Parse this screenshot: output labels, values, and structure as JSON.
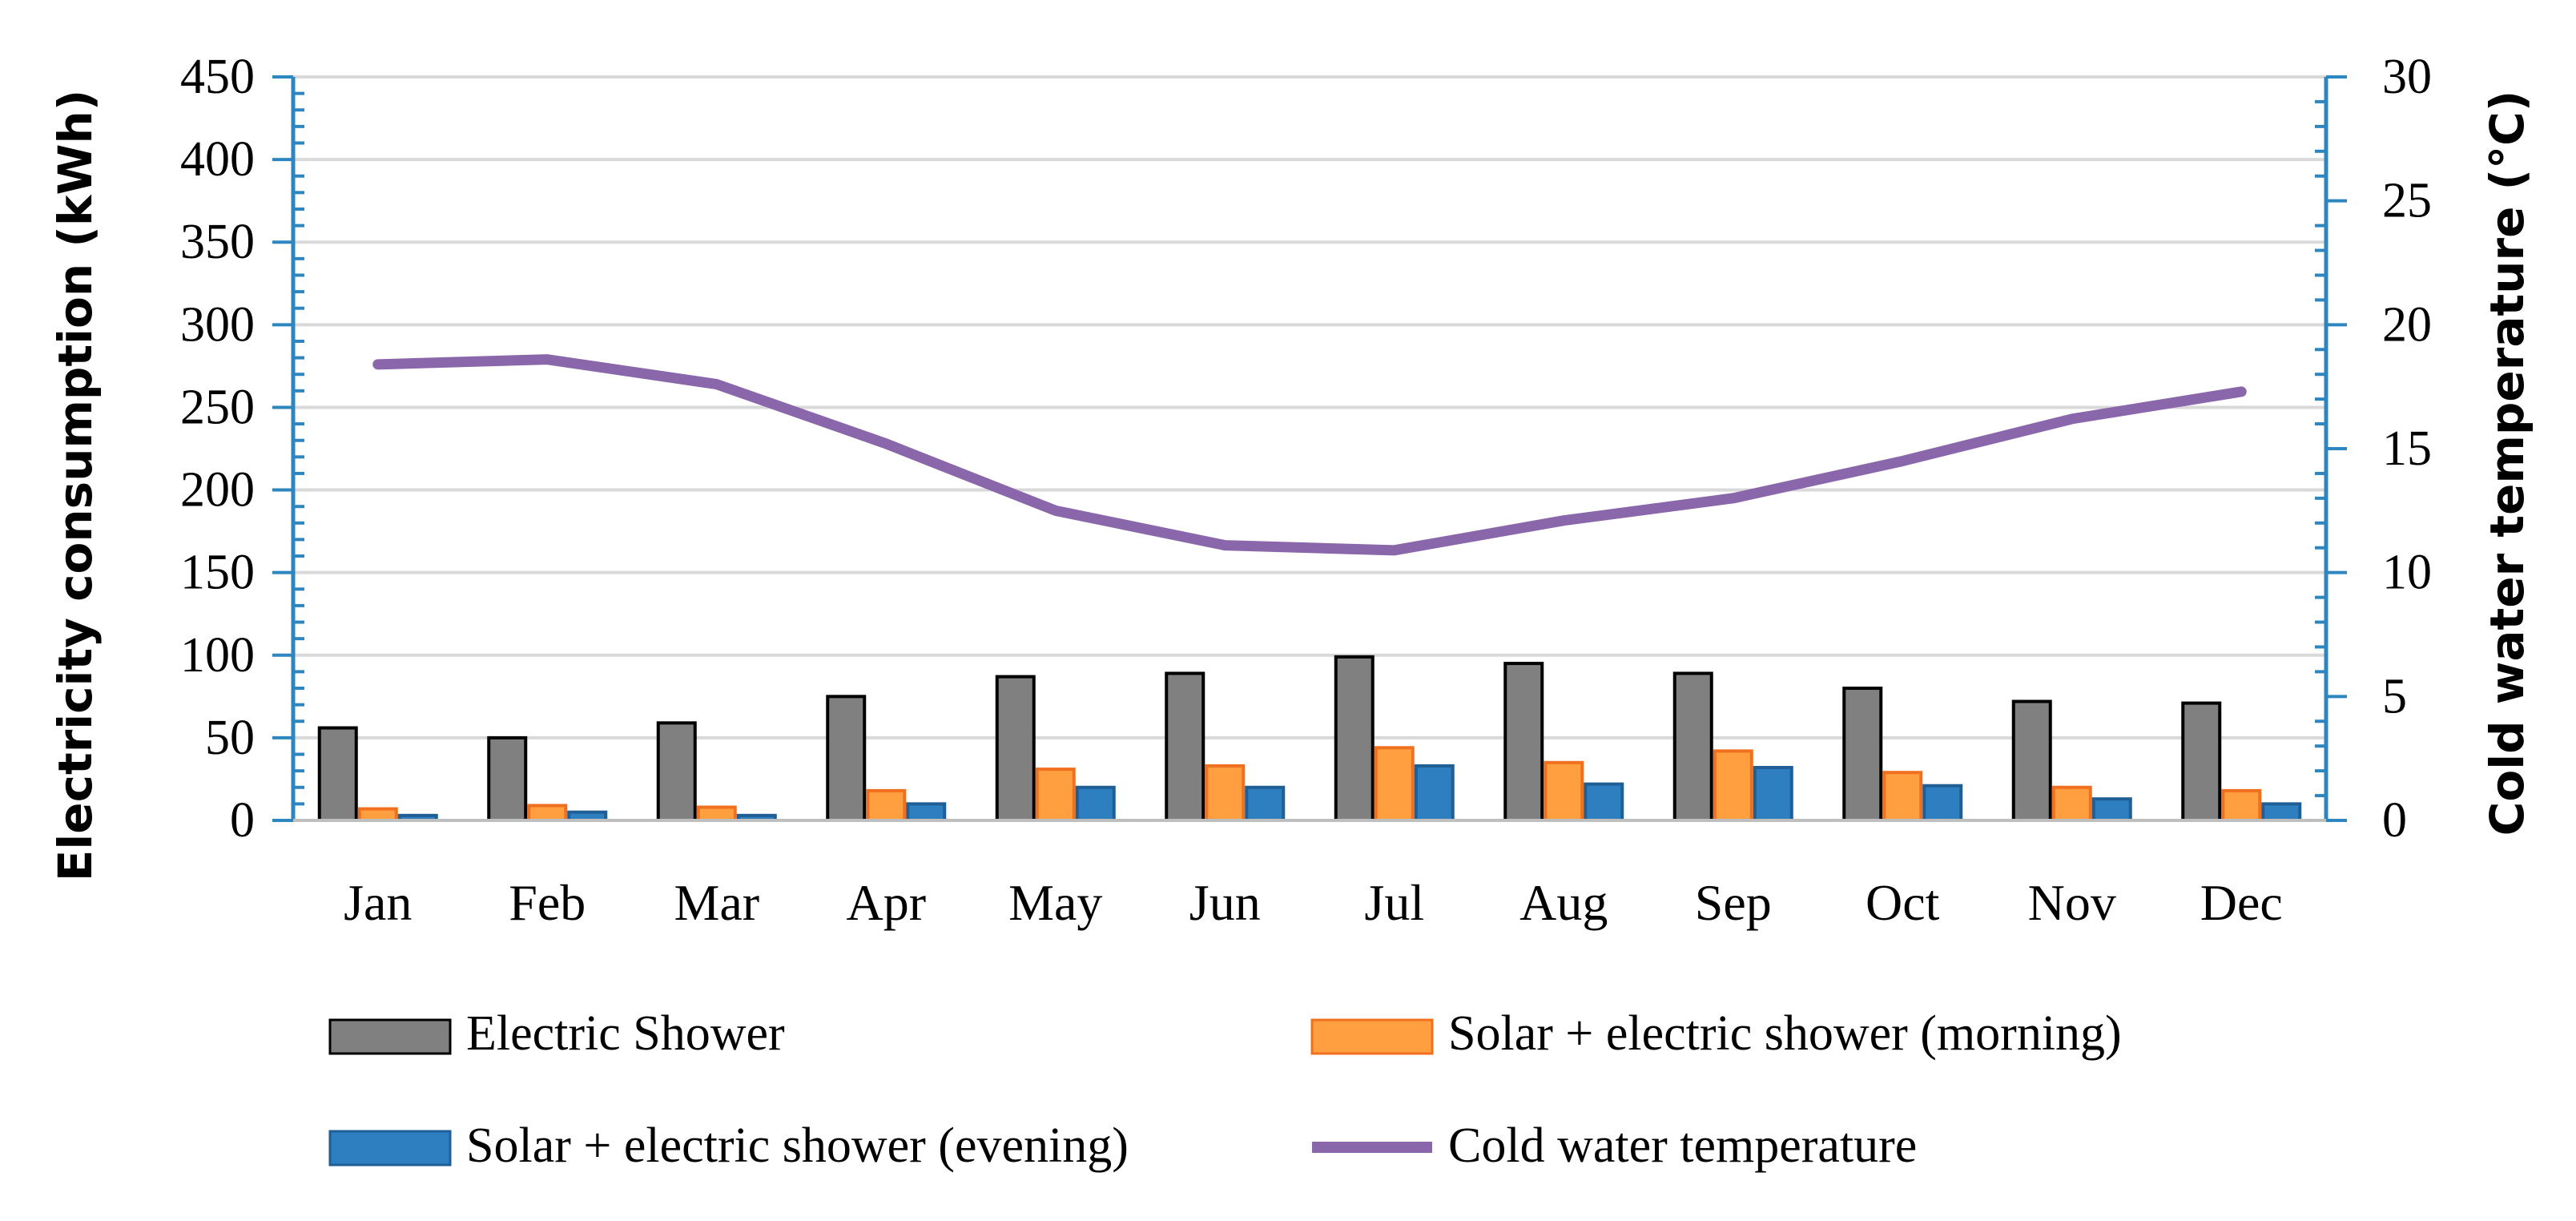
{
  "chart_data": {
    "type": "bar+line",
    "categories": [
      "Jan",
      "Feb",
      "Mar",
      "Apr",
      "May",
      "Jun",
      "Jul",
      "Aug",
      "Sep",
      "Oct",
      "Nov",
      "Dec"
    ],
    "ylabel": "Electricity consumption (kWh)",
    "y2label": "Cold water temperature (°C)",
    "ylim": [
      0,
      450
    ],
    "yticks": [
      "0",
      "50",
      "100",
      "150",
      "200",
      "250",
      "300",
      "350",
      "400",
      "450"
    ],
    "y2lim": [
      0,
      30
    ],
    "y2ticks": [
      "0",
      "5",
      "10",
      "15",
      "20",
      "25",
      "30"
    ],
    "grid": "horizontal",
    "legend_position": "bottom",
    "series": [
      {
        "name": "Electric Shower",
        "type": "bar",
        "axis": "left",
        "color": "#808080",
        "edge": "#000000",
        "values": [
          56,
          50,
          59,
          75,
          87,
          89,
          99,
          95,
          89,
          80,
          72,
          71
        ]
      },
      {
        "name": "Solar + electric shower (morning)",
        "type": "bar",
        "axis": "left",
        "color": "#FF9F40",
        "edge": "#F07020",
        "values": [
          7,
          9,
          8,
          18,
          31,
          33,
          44,
          35,
          42,
          29,
          20,
          18
        ]
      },
      {
        "name": "Solar + electric shower (evening)",
        "type": "bar",
        "axis": "left",
        "color": "#2E7FC0",
        "edge": "#1F5F95",
        "values": [
          3,
          5,
          3,
          10,
          20,
          20,
          33,
          22,
          32,
          21,
          13,
          10
        ]
      },
      {
        "name": "Cold water temperature",
        "type": "line",
        "axis": "right",
        "color": "#8A66AA",
        "values": [
          18.4,
          18.6,
          17.6,
          15.2,
          12.5,
          11.1,
          10.9,
          12.1,
          13.0,
          14.5,
          16.2,
          17.3
        ]
      }
    ],
    "legend": [
      {
        "label": "Electric Shower",
        "marker": "bar",
        "color": "#808080",
        "edge": "#000000"
      },
      {
        "label": "Solar + electric shower (morning)",
        "marker": "bar",
        "color": "#FF9F40",
        "edge": "#F07020"
      },
      {
        "label": "Solar + electric shower (evening)",
        "marker": "bar",
        "color": "#2E7FC0",
        "edge": "#1F5F95"
      },
      {
        "label": "Cold water temperature",
        "marker": "line",
        "color": "#8A66AA"
      }
    ]
  },
  "colors": {
    "axis": "#2E86C1",
    "grid": "#D9D9D9"
  }
}
